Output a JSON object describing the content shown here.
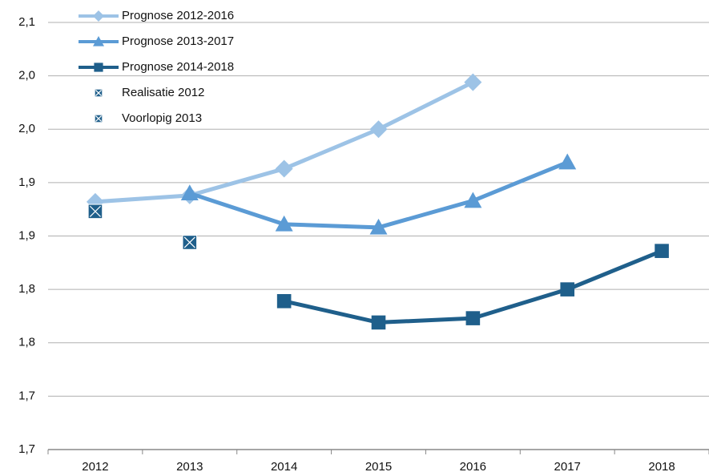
{
  "chart_data": {
    "type": "line",
    "categories": [
      "2012",
      "2013",
      "2014",
      "2015",
      "2016",
      "2017",
      "2018"
    ],
    "series": [
      {
        "name": "Prognose 2012-2016",
        "color": "#9dc3e6",
        "marker": "diamond",
        "line": true,
        "values": [
          1.932,
          1.938,
          1.963,
          2.0,
          2.044,
          null,
          null
        ]
      },
      {
        "name": "Prognose 2013-2017",
        "color": "#5b9bd5",
        "marker": "triangle",
        "line": true,
        "values": [
          null,
          1.94,
          1.911,
          1.908,
          1.933,
          1.969,
          null
        ]
      },
      {
        "name": "Prognose 2014-2018",
        "color": "#1f5f8b",
        "marker": "square",
        "line": true,
        "values": [
          null,
          null,
          1.839,
          1.819,
          1.823,
          1.85,
          1.886
        ]
      },
      {
        "name": "Realisatie 2012",
        "color": "#1f5f8b",
        "marker": "xsquare",
        "line": false,
        "values": [
          1.923,
          null,
          null,
          null,
          null,
          null,
          null
        ]
      },
      {
        "name": "Voorlopig 2013",
        "color": "#1f5f8b",
        "marker": "xsquare",
        "line": false,
        "values": [
          null,
          1.894,
          null,
          null,
          null,
          null,
          null
        ]
      }
    ],
    "ylim": [
      1.7,
      2.1
    ],
    "yticks": [
      {
        "value": 1.7,
        "label": "1,7"
      },
      {
        "value": 1.75,
        "label": "1,7"
      },
      {
        "value": 1.8,
        "label": "1,8"
      },
      {
        "value": 1.85,
        "label": "1,8"
      },
      {
        "value": 1.9,
        "label": "1,9"
      },
      {
        "value": 1.95,
        "label": "1,9"
      },
      {
        "value": 2.0,
        "label": "2,0"
      },
      {
        "value": 2.05,
        "label": "2,0"
      },
      {
        "value": 2.1,
        "label": "2,1"
      }
    ],
    "grid": true,
    "legend": "top-left"
  }
}
